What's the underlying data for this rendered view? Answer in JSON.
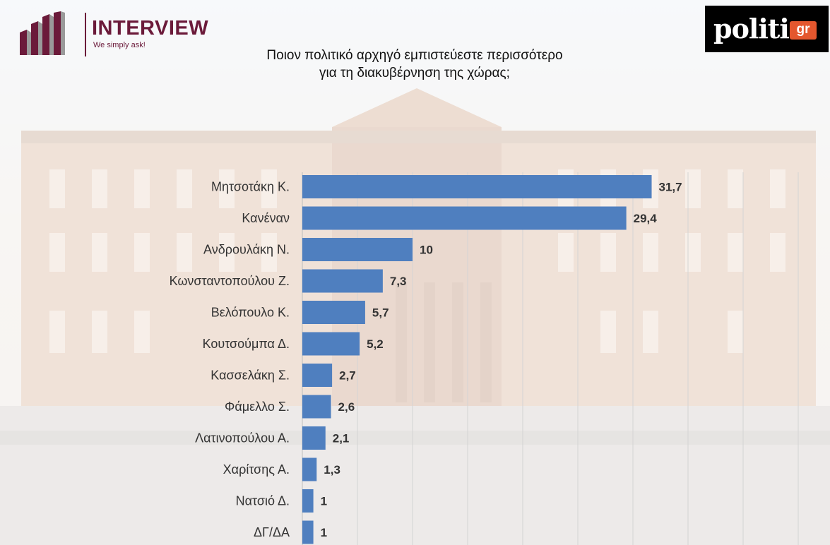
{
  "header": {
    "brand_name": "INTERVIEW",
    "brand_tagline": "We simply ask!",
    "brand_color": "#6b1a3a",
    "partner_logo_text": "politic",
    "partner_logo_suffix": "gr",
    "partner_accent": "#e4572e"
  },
  "chart_data": {
    "type": "bar",
    "orientation": "horizontal",
    "title_lines": [
      "Ποιον πολιτικό αρχηγό εμπιστεύεστε περισσότερο",
      "για τη διακυβέρνηση της χώρας;"
    ],
    "categories": [
      "Μητσοτάκη Κ.",
      "Κανέναν",
      "Ανδρουλάκη Ν.",
      "Κωνσταντοπούλου Ζ.",
      "Βελόπουλο Κ.",
      "Κουτσούμπα Δ.",
      "Κασσελάκη Σ.",
      "Φάμελλο Σ.",
      "Λατινοπούλου Α.",
      "Χαρίτσης Α.",
      "Νατσιό Δ.",
      "ΔΓ/ΔΑ"
    ],
    "values": [
      31.7,
      29.4,
      10,
      7.3,
      5.7,
      5.2,
      2.7,
      2.6,
      2.1,
      1.3,
      1,
      1
    ],
    "value_labels": [
      "31,7",
      "29,4",
      "10",
      "7,3",
      "5,7",
      "5,2",
      "2,7",
      "2,6",
      "2,1",
      "1,3",
      "1",
      "1"
    ],
    "xlim": [
      0,
      45
    ],
    "bar_color": "#4f7fbf",
    "grid": true,
    "legend": "none"
  }
}
